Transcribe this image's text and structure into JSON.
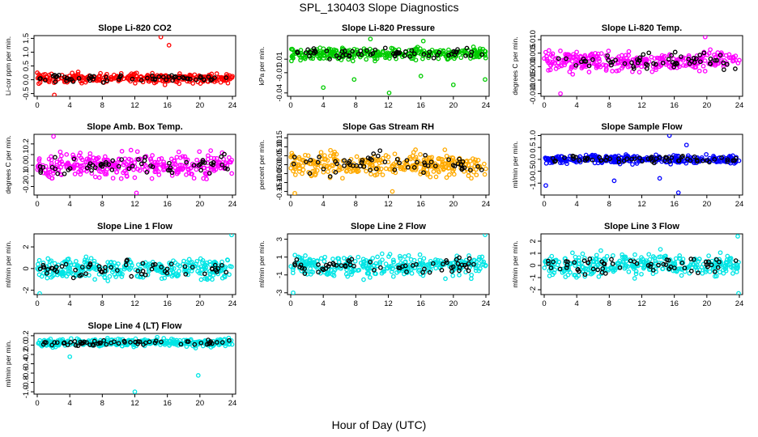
{
  "figure": {
    "title": "SPL_130403  Slope Diagnostics",
    "xlabel": "Hour of Day (UTC)"
  },
  "chart_data": [
    {
      "type": "scatter",
      "title": "Slope Li-820 CO2",
      "ylabel": "Li-cor ppm per min.",
      "color": "#ff0000",
      "xlim": [
        0,
        24
      ],
      "xticks": [
        0,
        4,
        8,
        12,
        16,
        20,
        24
      ],
      "ylim": [
        -0.6,
        1.6
      ],
      "yticks": [
        -0.5,
        0.0,
        0.5,
        1.0,
        1.5
      ],
      "ytick_labels": [
        "-0.5",
        "0.0",
        "0.5",
        "1.0",
        "1.5"
      ],
      "center": 0.05,
      "spread": 0.15,
      "outliers": [
        [
          15.2,
          1.55
        ],
        [
          16.2,
          1.25
        ],
        [
          2.1,
          -0.55
        ]
      ]
    },
    {
      "type": "scatter",
      "title": "Slope Li-820 Pressure",
      "ylabel": "kPa per min.",
      "color": "#00cc00",
      "xlim": [
        0,
        24
      ],
      "xticks": [
        0,
        4,
        8,
        12,
        16,
        20,
        24
      ],
      "ylim": [
        -0.045,
        0.045
      ],
      "yticks": [
        -0.04,
        -0.01,
        0.01
      ],
      "ytick_labels": [
        "-0.04",
        "-0.01",
        "0.01"
      ],
      "center": 0.018,
      "spread": 0.008,
      "outliers": [
        [
          4.0,
          -0.032
        ],
        [
          7.8,
          -0.02
        ],
        [
          12.1,
          -0.04
        ],
        [
          16.0,
          -0.015
        ],
        [
          20.0,
          -0.028
        ],
        [
          23.9,
          -0.02
        ],
        [
          9.8,
          0.04
        ],
        [
          16.3,
          0.037
        ]
      ]
    },
    {
      "type": "scatter",
      "title": "Slope Li-820 Temp.",
      "ylabel": "degrees C per min.",
      "color": "#ff00ff",
      "xlim": [
        0,
        24
      ],
      "xticks": [
        0,
        4,
        8,
        12,
        16,
        20,
        24
      ],
      "ylim": [
        -0.011,
        0.0115
      ],
      "yticks": [
        -0.01,
        -0.005,
        0.0,
        0.005,
        0.01
      ],
      "ytick_labels": [
        "-0.010",
        "-0.005",
        "0.000",
        "0.005",
        "0.010"
      ],
      "center": 0.002,
      "spread": 0.003,
      "outliers": [
        [
          2.0,
          -0.01
        ],
        [
          19.8,
          0.011
        ]
      ]
    },
    {
      "type": "scatter",
      "title": "Slope Amb. Box Temp.",
      "ylabel": "degrees C per min.",
      "color": "#ff00ff",
      "xlim": [
        0,
        24
      ],
      "xticks": [
        0,
        4,
        8,
        12,
        16,
        20,
        24
      ],
      "ylim": [
        -0.28,
        0.29
      ],
      "yticks": [
        -0.2,
        -0.1,
        0.0,
        0.1,
        0.2
      ],
      "ytick_labels": [
        "-0.2",
        "-0.1",
        "0.0",
        "0.1",
        "0.2"
      ],
      "center": 0.0,
      "spread": 0.1,
      "outliers": [
        [
          2.0,
          0.27
        ],
        [
          12.2,
          -0.26
        ]
      ]
    },
    {
      "type": "scatter",
      "title": "Slope Gas Stream RH",
      "ylabel": "percent per min.",
      "color": "#ffaa00",
      "xlim": [
        0,
        24
      ],
      "xticks": [
        0,
        4,
        8,
        12,
        16,
        20,
        24
      ],
      "ylim": [
        -0.17,
        0.17
      ],
      "yticks": [
        -0.15,
        -0.1,
        -0.05,
        0.0,
        0.05,
        0.1,
        0.15
      ],
      "ytick_labels": [
        "-0.15",
        "-0.10",
        "-0.05",
        "0.00",
        "0.05",
        "0.10",
        "0.15"
      ],
      "center": 0.0,
      "spread": 0.06,
      "outliers": [
        [
          0.5,
          -0.16
        ],
        [
          12.5,
          -0.15
        ]
      ]
    },
    {
      "type": "scatter",
      "title": "Slope Sample Flow",
      "ylabel": "ml/min per min.",
      "color": "#0000ff",
      "xlim": [
        0,
        24
      ],
      "xticks": [
        0,
        4,
        8,
        12,
        16,
        20,
        24
      ],
      "ylim": [
        -1.5,
        1.05
      ],
      "yticks": [
        -1.0,
        -0.5,
        0.0,
        0.5,
        1.0
      ],
      "ytick_labels": [
        "-1.0",
        "-0.5",
        "0.0",
        "0.5",
        "1.0"
      ],
      "center": 0.0,
      "spread": 0.15,
      "outliers": [
        [
          0.2,
          -1.1
        ],
        [
          15.4,
          1.0
        ],
        [
          16.5,
          -1.4
        ],
        [
          17.5,
          0.6
        ],
        [
          8.6,
          -0.9
        ],
        [
          14.2,
          -0.8
        ]
      ]
    },
    {
      "type": "scatter",
      "title": "Slope Line 1 Flow",
      "ylabel": "ml/min per min.",
      "color": "#00e5e5",
      "xlim": [
        0,
        24
      ],
      "xticks": [
        0,
        4,
        8,
        12,
        16,
        20,
        24
      ],
      "ylim": [
        -2.4,
        3.2
      ],
      "yticks": [
        -2,
        0,
        2
      ],
      "ytick_labels": [
        "-2",
        "0",
        "2"
      ],
      "center": 0.0,
      "spread": 0.8,
      "outliers": [
        [
          23.9,
          3.1
        ],
        [
          0.3,
          -2.3
        ]
      ]
    },
    {
      "type": "scatter",
      "title": "Slope Line 2 Flow",
      "ylabel": "ml/min per min.",
      "color": "#00e5e5",
      "xlim": [
        0,
        24
      ],
      "xticks": [
        0,
        4,
        8,
        12,
        16,
        20,
        24
      ],
      "ylim": [
        -3.2,
        3.6
      ],
      "yticks": [
        -3,
        -1,
        1,
        3
      ],
      "ytick_labels": [
        "-3",
        "-1",
        "1",
        "3"
      ],
      "center": 0.0,
      "spread": 1.0,
      "outliers": [
        [
          23.9,
          3.5
        ],
        [
          0.3,
          -3.0
        ]
      ]
    },
    {
      "type": "scatter",
      "title": "Slope Line 3 Flow",
      "ylabel": "ml/min per min.",
      "color": "#00e5e5",
      "xlim": [
        0,
        24
      ],
      "xticks": [
        0,
        4,
        8,
        12,
        16,
        20,
        24
      ],
      "ylim": [
        -2.4,
        2.6
      ],
      "yticks": [
        -2,
        -1,
        0,
        1,
        2
      ],
      "ytick_labels": [
        "-2",
        "-1",
        "0",
        "1",
        "2"
      ],
      "center": 0.0,
      "spread": 0.8,
      "outliers": [
        [
          23.9,
          -2.3
        ],
        [
          23.8,
          2.4
        ]
      ]
    },
    {
      "type": "scatter",
      "title": "Slope Line 4 (LT) Flow",
      "ylabel": "ml/min per min.",
      "color": "#00e5e5",
      "xlim": [
        0,
        24
      ],
      "xticks": [
        0,
        4,
        8,
        12,
        16,
        20,
        24
      ],
      "ylim": [
        -1.05,
        0.25
      ],
      "yticks": [
        -1.0,
        -0.8,
        -0.6,
        -0.4,
        -0.2,
        0.0,
        0.2
      ],
      "ytick_labels": [
        "-1.0",
        "-0.8",
        "-0.6",
        "-0.4",
        "-0.2",
        "0.0",
        "0.2"
      ],
      "center": 0.05,
      "spread": 0.07,
      "outliers": [
        [
          19.8,
          -0.65
        ],
        [
          12.0,
          -1.0
        ],
        [
          4.0,
          -0.25
        ]
      ]
    }
  ]
}
